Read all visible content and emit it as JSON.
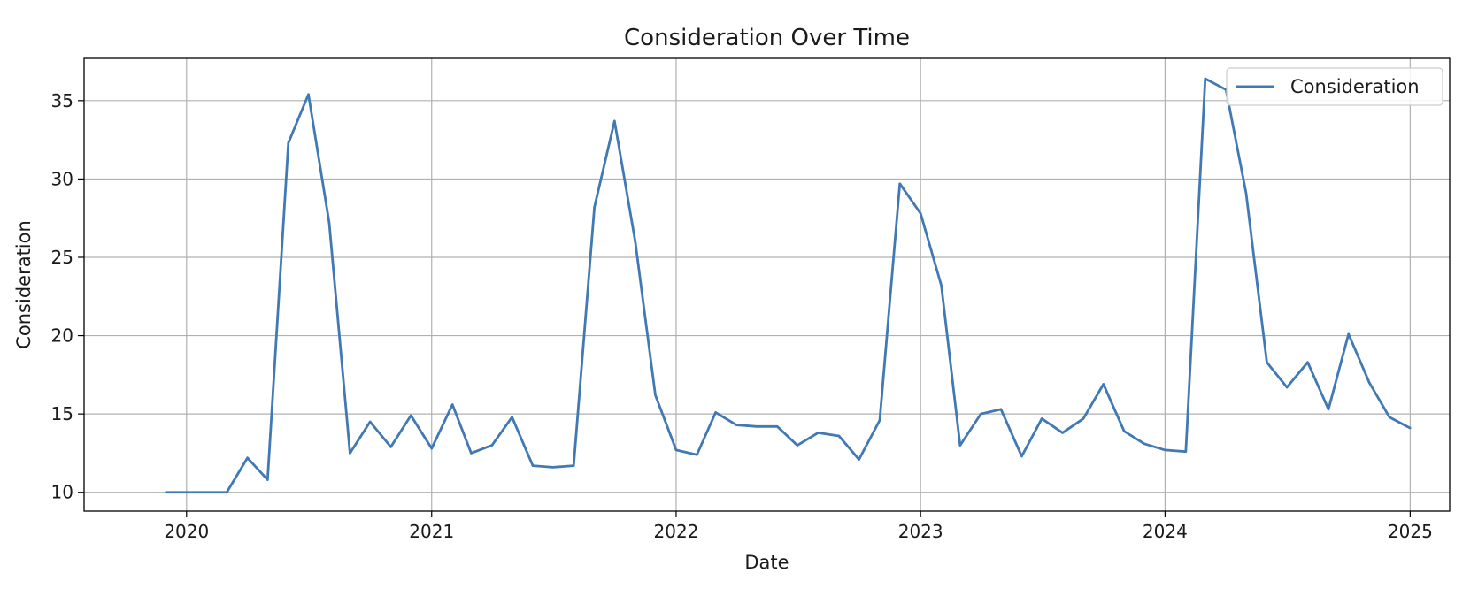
{
  "chart_data": {
    "type": "line",
    "title": "Consideration Over Time",
    "xlabel": "Date",
    "ylabel": "Consideration",
    "xlim": [
      "2019-08-01",
      "2025-03-01"
    ],
    "ylim": [
      8.8,
      37.7
    ],
    "grid": true,
    "legend_position": "top-right",
    "x_ticks": [
      "2020",
      "2021",
      "2022",
      "2023",
      "2024",
      "2025"
    ],
    "y_ticks": [
      "10",
      "15",
      "20",
      "25",
      "30",
      "35"
    ],
    "series": [
      {
        "name": "Consideration",
        "color": "#4179b5",
        "x": [
          "2019-12-01",
          "2020-01-01",
          "2020-02-01",
          "2020-03-01",
          "2020-04-01",
          "2020-05-01",
          "2020-06-01",
          "2020-07-01",
          "2020-08-01",
          "2020-09-01",
          "2020-10-01",
          "2020-11-01",
          "2020-12-01",
          "2021-01-01",
          "2021-02-01",
          "2021-03-01",
          "2021-04-01",
          "2021-05-01",
          "2021-06-01",
          "2021-07-01",
          "2021-08-01",
          "2021-09-01",
          "2021-10-01",
          "2021-11-01",
          "2021-12-01",
          "2022-01-01",
          "2022-02-01",
          "2022-03-01",
          "2022-04-01",
          "2022-05-01",
          "2022-06-01",
          "2022-07-01",
          "2022-08-01",
          "2022-09-01",
          "2022-10-01",
          "2022-11-01",
          "2022-12-01",
          "2023-01-01",
          "2023-02-01",
          "2023-03-01",
          "2023-04-01",
          "2023-05-01",
          "2023-06-01",
          "2023-07-01",
          "2023-08-01",
          "2023-09-01",
          "2023-10-01",
          "2023-11-01",
          "2023-12-01",
          "2024-01-01",
          "2024-02-01",
          "2024-03-01",
          "2024-04-01",
          "2024-05-01",
          "2024-06-01",
          "2024-07-01",
          "2024-08-01",
          "2024-09-01",
          "2024-10-01",
          "2024-11-01",
          "2024-12-01",
          "2025-01-01"
        ],
        "values": [
          10.0,
          10.0,
          10.0,
          10.0,
          12.2,
          10.8,
          32.3,
          35.4,
          27.2,
          12.5,
          14.5,
          12.9,
          14.9,
          12.8,
          15.6,
          12.5,
          13.0,
          14.8,
          11.7,
          11.6,
          11.7,
          28.2,
          33.7,
          26.0,
          16.2,
          12.7,
          12.4,
          15.1,
          14.3,
          14.2,
          14.2,
          13.0,
          13.8,
          13.6,
          12.1,
          14.6,
          29.7,
          27.8,
          23.2,
          13.0,
          15.0,
          15.3,
          12.3,
          14.7,
          13.8,
          14.7,
          16.9,
          13.9,
          13.1,
          12.7,
          12.6,
          36.4,
          35.7,
          29.1,
          18.3,
          16.7,
          18.3,
          15.3,
          20.1,
          17.0,
          14.8,
          14.1
        ]
      }
    ]
  }
}
